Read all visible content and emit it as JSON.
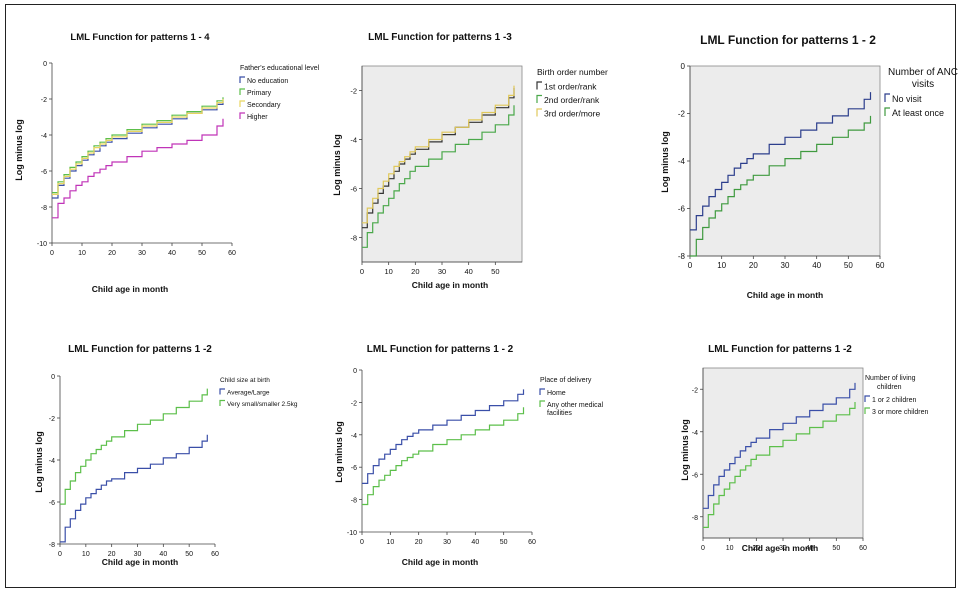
{
  "chart_data": [
    {
      "type": "line",
      "title": "LML Function for patterns 1 - 4",
      "xlabel": "Child age in month",
      "ylabel": "Log minus log",
      "xlim": [
        0,
        60
      ],
      "ylim": [
        -10,
        0
      ],
      "xticks": [
        "0",
        "10",
        "20",
        "30",
        "40",
        "50",
        "60"
      ],
      "yticks": [
        "0",
        "-2",
        "-4",
        "-6",
        "-8",
        "-10"
      ],
      "legend_title": "Father's educational level",
      "legend_position": "right",
      "x": [
        0,
        2,
        4,
        6,
        8,
        10,
        12,
        14,
        16,
        18,
        20,
        25,
        30,
        35,
        40,
        45,
        50,
        55,
        57
      ],
      "series": [
        {
          "name": "No education",
          "color": "#3a4fa8",
          "values": [
            -7.5,
            -6.8,
            -6.4,
            -6.0,
            -5.7,
            -5.4,
            -5.1,
            -4.9,
            -4.6,
            -4.4,
            -4.2,
            -3.9,
            -3.6,
            -3.4,
            -3.1,
            -2.8,
            -2.6,
            -2.3,
            -2.1
          ]
        },
        {
          "name": "Primary",
          "color": "#5cbf4a",
          "values": [
            -7.2,
            -6.6,
            -6.2,
            -5.8,
            -5.5,
            -5.2,
            -4.9,
            -4.6,
            -4.4,
            -4.2,
            -4.0,
            -3.7,
            -3.4,
            -3.2,
            -2.9,
            -2.7,
            -2.4,
            -2.1,
            -1.9
          ]
        },
        {
          "name": "Secondary",
          "color": "#e8d560",
          "values": [
            -7.3,
            -6.7,
            -6.3,
            -5.9,
            -5.6,
            -5.3,
            -5.0,
            -4.7,
            -4.5,
            -4.3,
            -4.1,
            -3.8,
            -3.5,
            -3.3,
            -3.0,
            -2.8,
            -2.5,
            -2.2,
            -2.0
          ]
        },
        {
          "name": "Higher",
          "color": "#c034b8",
          "values": [
            -8.6,
            -7.8,
            -7.5,
            -7.1,
            -6.8,
            -6.6,
            -6.3,
            -6.1,
            -5.9,
            -5.7,
            -5.5,
            -5.2,
            -4.9,
            -4.7,
            -4.5,
            -4.3,
            -4.0,
            -3.5,
            -3.1
          ]
        }
      ]
    },
    {
      "type": "line",
      "title": "LML Function for patterns 1 -3",
      "xlabel": "Child age in month",
      "ylabel": "Log minus log",
      "xlim": [
        0,
        60
      ],
      "ylim": [
        -9,
        -1
      ],
      "xticks": [
        "0",
        "10",
        "20",
        "30",
        "40",
        "50"
      ],
      "yticks": [
        "-2",
        "-4",
        "-6",
        "-8"
      ],
      "legend_title": "Birth order number",
      "legend_position": "right",
      "x": [
        0,
        2,
        4,
        6,
        8,
        10,
        12,
        14,
        16,
        18,
        20,
        25,
        30,
        35,
        40,
        45,
        50,
        55,
        57
      ],
      "series": [
        {
          "name": "1st order/rank",
          "color": "#333333",
          "values": [
            -7.6,
            -7.0,
            -6.6,
            -6.2,
            -5.9,
            -5.6,
            -5.3,
            -5.0,
            -4.8,
            -4.6,
            -4.4,
            -4.1,
            -3.8,
            -3.5,
            -3.3,
            -3.0,
            -2.7,
            -2.3,
            -1.9
          ]
        },
        {
          "name": "2nd order/rank",
          "color": "#4aa84a",
          "values": [
            -8.4,
            -7.8,
            -7.4,
            -7.0,
            -6.7,
            -6.4,
            -6.1,
            -5.8,
            -5.6,
            -5.3,
            -5.1,
            -4.8,
            -4.5,
            -4.2,
            -4.0,
            -3.7,
            -3.4,
            -3.0,
            -2.6
          ]
        },
        {
          "name": "3rd order/more",
          "color": "#e0c85a",
          "values": [
            -7.4,
            -6.8,
            -6.4,
            -6.0,
            -5.7,
            -5.4,
            -5.1,
            -4.9,
            -4.7,
            -4.5,
            -4.3,
            -4.0,
            -3.7,
            -3.5,
            -3.2,
            -2.9,
            -2.6,
            -2.2,
            -1.8
          ]
        }
      ]
    },
    {
      "type": "line",
      "title": "LML Function for patterns 1 - 2",
      "xlabel": "Child age in month",
      "ylabel": "Log minus log",
      "xlim": [
        0,
        60
      ],
      "ylim": [
        -8,
        0
      ],
      "xticks": [
        "0",
        "10",
        "20",
        "30",
        "40",
        "50",
        "60"
      ],
      "yticks": [
        "0",
        "-2",
        "-4",
        "-6",
        "-8"
      ],
      "legend_title": "Number of ANC visits",
      "legend_position": "right",
      "x": [
        0,
        2,
        4,
        6,
        8,
        10,
        12,
        14,
        16,
        18,
        20,
        25,
        30,
        35,
        40,
        45,
        50,
        55,
        57
      ],
      "series": [
        {
          "name": "No visit",
          "color": "#2c3e8c",
          "values": [
            -6.9,
            -6.3,
            -5.9,
            -5.5,
            -5.2,
            -4.9,
            -4.6,
            -4.3,
            -4.1,
            -3.9,
            -3.7,
            -3.3,
            -3.0,
            -2.7,
            -2.4,
            -2.1,
            -1.8,
            -1.4,
            -1.1
          ]
        },
        {
          "name": "At least once",
          "color": "#3f9a3f",
          "values": [
            -8.0,
            -7.3,
            -6.8,
            -6.4,
            -6.1,
            -5.8,
            -5.5,
            -5.2,
            -5.0,
            -4.8,
            -4.6,
            -4.2,
            -3.9,
            -3.6,
            -3.3,
            -3.0,
            -2.7,
            -2.4,
            -2.1
          ]
        }
      ]
    },
    {
      "type": "line",
      "title": "LML Function for patterns 1 -2",
      "xlabel": "Child age in month",
      "ylabel": "Log minus log",
      "xlim": [
        0,
        60
      ],
      "ylim": [
        -8,
        0
      ],
      "xticks": [
        "0",
        "10",
        "20",
        "30",
        "40",
        "50",
        "60"
      ],
      "yticks": [
        "0",
        "-2",
        "-4",
        "-6",
        "-8"
      ],
      "legend_title": "Child size at birth",
      "legend_position": "right",
      "x": [
        0,
        2,
        4,
        6,
        8,
        10,
        12,
        14,
        16,
        18,
        20,
        25,
        30,
        35,
        40,
        45,
        50,
        55,
        57
      ],
      "series": [
        {
          "name": "Average/Large",
          "color": "#3a4fa8",
          "values": [
            -7.9,
            -7.2,
            -6.8,
            -6.4,
            -6.1,
            -5.8,
            -5.6,
            -5.4,
            -5.2,
            -5.0,
            -4.9,
            -4.6,
            -4.4,
            -4.2,
            -3.9,
            -3.7,
            -3.4,
            -3.1,
            -2.8
          ]
        },
        {
          "name": "Very small/smaller 2.5kg",
          "color": "#5cbf4a",
          "values": [
            -6.1,
            -5.4,
            -5.0,
            -4.6,
            -4.3,
            -4.0,
            -3.7,
            -3.5,
            -3.3,
            -3.1,
            -2.9,
            -2.6,
            -2.3,
            -2.1,
            -1.8,
            -1.5,
            -1.2,
            -0.9,
            -0.6
          ]
        }
      ]
    },
    {
      "type": "line",
      "title": "LML Function for patterns 1 - 2",
      "xlabel": "Child age in month",
      "ylabel": "Log minus log",
      "xlim": [
        0,
        60
      ],
      "ylim": [
        -10,
        0
      ],
      "xticks": [
        "0",
        "10",
        "20",
        "30",
        "40",
        "50",
        "60"
      ],
      "yticks": [
        "0",
        "-2",
        "-4",
        "-6",
        "-8",
        "-10"
      ],
      "legend_title": "Place of delivery",
      "legend_position": "right",
      "x": [
        0,
        2,
        4,
        6,
        8,
        10,
        12,
        14,
        16,
        18,
        20,
        25,
        30,
        35,
        40,
        45,
        50,
        55,
        57
      ],
      "series": [
        {
          "name": "Home",
          "color": "#3a4fa8",
          "values": [
            -7.0,
            -6.4,
            -5.9,
            -5.5,
            -5.2,
            -4.9,
            -4.6,
            -4.3,
            -4.1,
            -3.9,
            -3.7,
            -3.4,
            -3.1,
            -2.8,
            -2.5,
            -2.2,
            -1.9,
            -1.5,
            -1.2
          ]
        },
        {
          "name": "Any other medical facilities",
          "color": "#5cbf4a",
          "values": [
            -8.3,
            -7.7,
            -7.2,
            -6.8,
            -6.5,
            -6.2,
            -5.9,
            -5.6,
            -5.4,
            -5.2,
            -5.0,
            -4.6,
            -4.3,
            -4.0,
            -3.7,
            -3.4,
            -3.1,
            -2.7,
            -2.3
          ]
        }
      ]
    },
    {
      "type": "line",
      "title": "LML Function for patterns 1 -2",
      "xlabel": "Child age in month",
      "ylabel": "Log minus log",
      "xlim": [
        0,
        60
      ],
      "ylim": [
        -9,
        -1
      ],
      "xticks": [
        "0",
        "10",
        "20",
        "30",
        "40",
        "50",
        "60"
      ],
      "yticks": [
        "-2",
        "-4",
        "-6",
        "-8"
      ],
      "legend_title": "Number of living children",
      "legend_position": "right",
      "x": [
        0,
        2,
        4,
        6,
        8,
        10,
        12,
        14,
        16,
        18,
        20,
        25,
        30,
        35,
        40,
        45,
        50,
        55,
        57
      ],
      "series": [
        {
          "name": "1 or 2 children",
          "color": "#3a4fa8",
          "values": [
            -7.6,
            -7.0,
            -6.5,
            -6.1,
            -5.8,
            -5.5,
            -5.2,
            -4.9,
            -4.7,
            -4.5,
            -4.3,
            -3.9,
            -3.6,
            -3.3,
            -3.0,
            -2.7,
            -2.4,
            -2.0,
            -1.7
          ]
        },
        {
          "name": "3 or more children",
          "color": "#5cbf4a",
          "values": [
            -8.5,
            -7.9,
            -7.4,
            -7.0,
            -6.7,
            -6.4,
            -6.1,
            -5.8,
            -5.6,
            -5.3,
            -5.1,
            -4.7,
            -4.4,
            -4.1,
            -3.8,
            -3.5,
            -3.2,
            -2.9,
            -2.6
          ]
        }
      ]
    }
  ]
}
